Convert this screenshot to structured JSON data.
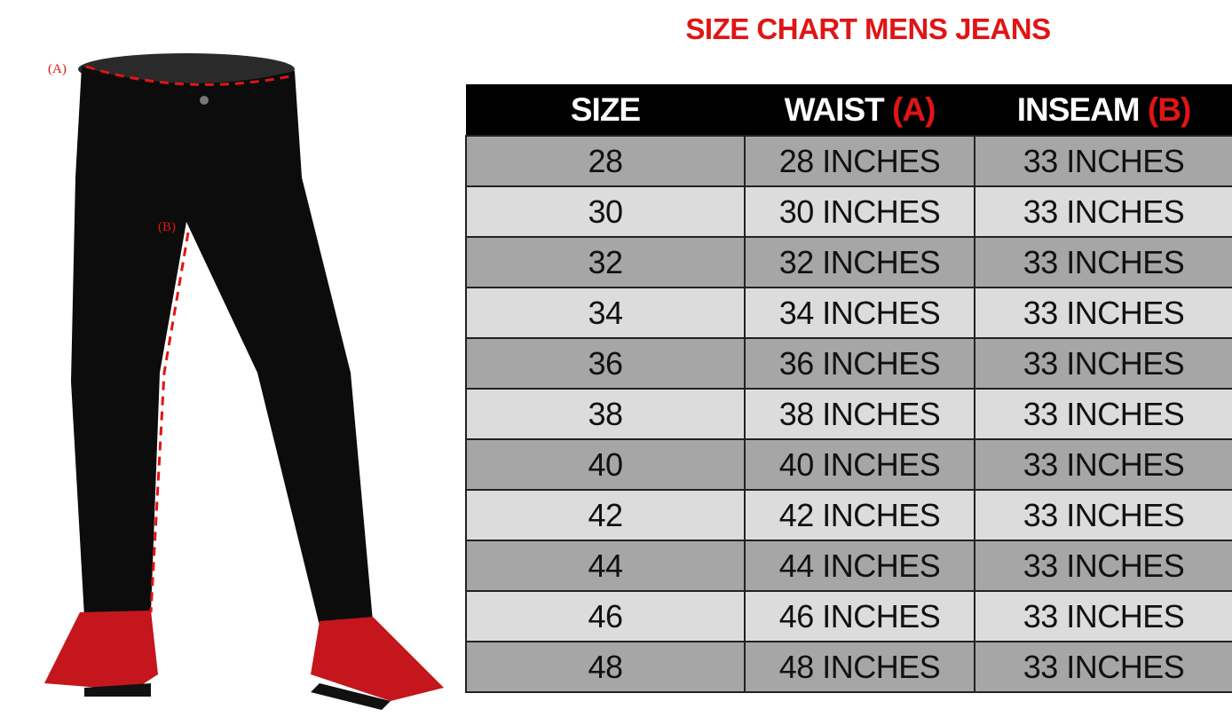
{
  "title": "SIZE CHART MENS JEANS",
  "colors": {
    "title": "#e01515",
    "header_bg": "#000000",
    "row_dark": "#a6a6a6",
    "row_light": "#dcdcdc",
    "marker": "#e01515"
  },
  "headers": [
    {
      "label": "SIZE",
      "marker": ""
    },
    {
      "label": "WAIST ",
      "marker": "(A)"
    },
    {
      "label": "INSEAM ",
      "marker": "(B)"
    }
  ],
  "rows": [
    [
      "28",
      "28 INCHES",
      "33 INCHES"
    ],
    [
      "30",
      "30 INCHES",
      "33 INCHES"
    ],
    [
      "32",
      "32 INCHES",
      "33 INCHES"
    ],
    [
      "34",
      "34 INCHES",
      "33 INCHES"
    ],
    [
      "36",
      "36 INCHES",
      "33 INCHES"
    ],
    [
      "38",
      "38 INCHES",
      "33 INCHES"
    ],
    [
      "40",
      "40 INCHES",
      "33 INCHES"
    ],
    [
      "42",
      "42 INCHES",
      "33 INCHES"
    ],
    [
      "44",
      "44 INCHES",
      "33 INCHES"
    ],
    [
      "46",
      "46 INCHES",
      "33 INCHES"
    ],
    [
      "48",
      "48 INCHES",
      "33 INCHES"
    ]
  ],
  "illustration": {
    "label_a": "(A)",
    "label_b": "(B)",
    "icon": "black-jeans-with-red-sneakers"
  }
}
